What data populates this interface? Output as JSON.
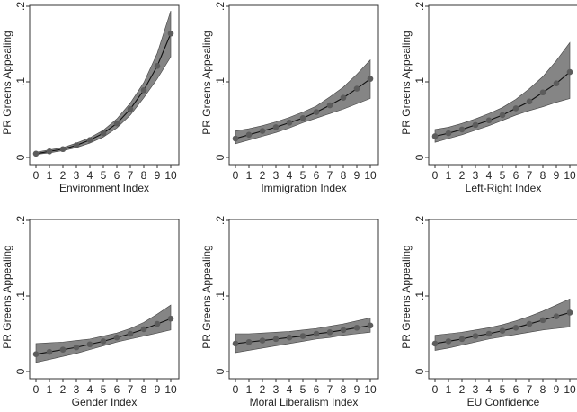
{
  "chart_data": [
    {
      "type": "line",
      "xlabel": "Environment Index",
      "ylabel": "PR Greens Appealing",
      "ylim": [
        0,
        0.2
      ],
      "yticks": [
        "0",
        ".1",
        ".2"
      ],
      "x": [
        0,
        1,
        2,
        3,
        4,
        5,
        6,
        7,
        8,
        9,
        10
      ],
      "values": [
        0.005,
        0.008,
        0.011,
        0.016,
        0.023,
        0.032,
        0.045,
        0.064,
        0.089,
        0.121,
        0.164
      ],
      "ci_lower": [
        0.004,
        0.006,
        0.009,
        0.013,
        0.019,
        0.027,
        0.039,
        0.056,
        0.079,
        0.104,
        0.133
      ],
      "ci_upper": [
        0.007,
        0.01,
        0.013,
        0.019,
        0.026,
        0.036,
        0.051,
        0.072,
        0.099,
        0.138,
        0.194
      ]
    },
    {
      "type": "line",
      "xlabel": "Immigration Index",
      "ylabel": "PR Greens Appealing",
      "ylim": [
        0,
        0.2
      ],
      "yticks": [
        "0",
        ".1",
        ".2"
      ],
      "x": [
        0,
        1,
        2,
        3,
        4,
        5,
        6,
        7,
        8,
        9,
        10
      ],
      "values": [
        0.025,
        0.03,
        0.035,
        0.04,
        0.046,
        0.052,
        0.06,
        0.069,
        0.079,
        0.091,
        0.104
      ],
      "ci_lower": [
        0.018,
        0.023,
        0.028,
        0.033,
        0.039,
        0.046,
        0.052,
        0.058,
        0.064,
        0.071,
        0.078
      ],
      "ci_upper": [
        0.035,
        0.038,
        0.042,
        0.047,
        0.053,
        0.06,
        0.068,
        0.08,
        0.093,
        0.11,
        0.129
      ]
    },
    {
      "type": "line",
      "xlabel": "Left-Right Index",
      "ylabel": "PR Greens Appealing",
      "ylim": [
        0,
        0.2
      ],
      "yticks": [
        "0",
        ".1",
        ".2"
      ],
      "x": [
        0,
        1,
        2,
        3,
        4,
        5,
        6,
        7,
        8,
        9,
        10
      ],
      "values": [
        0.028,
        0.032,
        0.037,
        0.043,
        0.049,
        0.056,
        0.065,
        0.074,
        0.086,
        0.098,
        0.113
      ],
      "ci_lower": [
        0.02,
        0.025,
        0.03,
        0.036,
        0.042,
        0.049,
        0.056,
        0.062,
        0.067,
        0.073,
        0.078
      ],
      "ci_upper": [
        0.037,
        0.04,
        0.045,
        0.051,
        0.058,
        0.066,
        0.077,
        0.091,
        0.107,
        0.128,
        0.152
      ]
    },
    {
      "type": "line",
      "xlabel": "Gender Index",
      "ylabel": "PR Greens Appealing",
      "ylim": [
        0,
        0.2
      ],
      "yticks": [
        "0",
        ".1",
        ".2"
      ],
      "x": [
        0,
        1,
        2,
        3,
        4,
        5,
        6,
        7,
        8,
        9,
        10
      ],
      "values": [
        0.023,
        0.026,
        0.029,
        0.032,
        0.036,
        0.04,
        0.045,
        0.05,
        0.056,
        0.063,
        0.07
      ],
      "ci_lower": [
        0.012,
        0.016,
        0.02,
        0.024,
        0.029,
        0.034,
        0.039,
        0.043,
        0.047,
        0.051,
        0.055
      ],
      "ci_upper": [
        0.037,
        0.038,
        0.039,
        0.041,
        0.043,
        0.047,
        0.051,
        0.057,
        0.065,
        0.076,
        0.088
      ]
    },
    {
      "type": "line",
      "xlabel": "Moral Liberalism Index",
      "ylabel": "PR Greens Appealing",
      "ylim": [
        0,
        0.2
      ],
      "yticks": [
        "0",
        ".1",
        ".2"
      ],
      "x": [
        0,
        1,
        2,
        3,
        4,
        5,
        6,
        7,
        8,
        9,
        10
      ],
      "values": [
        0.037,
        0.039,
        0.041,
        0.043,
        0.045,
        0.047,
        0.05,
        0.052,
        0.055,
        0.058,
        0.061
      ],
      "ci_lower": [
        0.025,
        0.028,
        0.031,
        0.034,
        0.037,
        0.04,
        0.043,
        0.045,
        0.048,
        0.05,
        0.052
      ],
      "ci_upper": [
        0.05,
        0.05,
        0.051,
        0.052,
        0.053,
        0.055,
        0.057,
        0.06,
        0.063,
        0.067,
        0.071
      ]
    },
    {
      "type": "line",
      "xlabel": "EU Confidence",
      "ylabel": "PR Greens Appealing",
      "ylim": [
        0,
        0.2
      ],
      "yticks": [
        "0",
        ".1",
        ".2"
      ],
      "x": [
        0,
        1,
        2,
        3,
        4,
        5,
        6,
        7,
        8,
        9,
        10
      ],
      "values": [
        0.037,
        0.04,
        0.043,
        0.047,
        0.05,
        0.054,
        0.058,
        0.063,
        0.068,
        0.073,
        0.078
      ],
      "ci_lower": [
        0.028,
        0.031,
        0.035,
        0.039,
        0.043,
        0.046,
        0.049,
        0.052,
        0.055,
        0.057,
        0.059
      ],
      "ci_upper": [
        0.048,
        0.05,
        0.052,
        0.055,
        0.058,
        0.062,
        0.067,
        0.073,
        0.08,
        0.088,
        0.096
      ]
    }
  ],
  "colors": {
    "ci_band": "#858585",
    "marker": "#5c5c5c",
    "line": "#111111",
    "frame": "#333333"
  }
}
